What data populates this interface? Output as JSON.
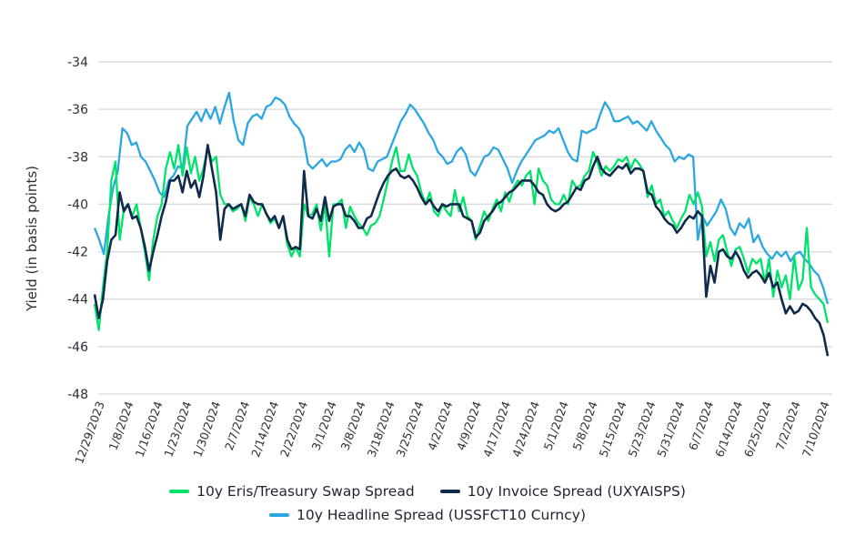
{
  "chart_data": {
    "type": "line",
    "title": "",
    "xlabel": "",
    "ylabel": "Yield (in basis points)",
    "ylim": [
      -48,
      -34
    ],
    "yticks": [
      -34,
      -36,
      -38,
      -40,
      -42,
      -44,
      -46,
      -48
    ],
    "grid": true,
    "legend_position": "bottom",
    "x_tick_labels": [
      "12/29/2023",
      "1/8/2024",
      "1/16/2024",
      "1/23/2024",
      "1/30/2024",
      "2/7/2024",
      "2/14/2024",
      "2/22/2024",
      "3/1/2024",
      "3/8/2024",
      "3/18/2024",
      "3/25/2024",
      "4/2/2024",
      "4/9/2024",
      "4/17/2024",
      "4/24/2024",
      "5/1/2024",
      "5/8/2024",
      "5/15/2024",
      "5/23/2024",
      "5/31/2024",
      "6/7/2024",
      "6/14/2024",
      "6/25/2024",
      "7/2/2024",
      "7/10/2024"
    ],
    "series": [
      {
        "name": "10y Eris/Treasury Swap Spread",
        "color": "#00e36b",
        "values": [
          -44.2,
          -45.3,
          -43.5,
          -42.0,
          -39.0,
          -38.2,
          -41.5,
          -40.2,
          -40.0,
          -40.5,
          -40.0,
          -41.0,
          -42.0,
          -43.2,
          -41.5,
          -40.5,
          -40.0,
          -38.5,
          -37.8,
          -38.5,
          -37.5,
          -38.8,
          -37.6,
          -38.7,
          -38.0,
          -39.0,
          -38.5,
          -37.6,
          -38.2,
          -38.0,
          -39.6,
          -40.0,
          -40.0,
          -40.3,
          -40.2,
          -40.0,
          -40.7,
          -39.7,
          -40.0,
          -40.5,
          -40.0,
          -40.4,
          -40.8,
          -40.6,
          -41.0,
          -40.5,
          -41.7,
          -42.2,
          -41.8,
          -42.2,
          -40.0,
          -40.5,
          -40.4,
          -40.0,
          -41.1,
          -40.0,
          -42.2,
          -40.0,
          -40.0,
          -39.8,
          -41.0,
          -40.1,
          -40.5,
          -40.8,
          -41.0,
          -41.3,
          -40.9,
          -40.8,
          -40.5,
          -39.8,
          -39.0,
          -38.2,
          -37.6,
          -38.6,
          -38.6,
          -37.9,
          -38.5,
          -38.8,
          -39.5,
          -40.0,
          -39.5,
          -40.3,
          -40.5,
          -40.0,
          -40.3,
          -40.5,
          -39.4,
          -40.3,
          -39.7,
          -40.5,
          -40.7,
          -41.5,
          -40.9,
          -40.3,
          -40.7,
          -40.2,
          -39.8,
          -40.3,
          -39.5,
          -39.9,
          -39.3,
          -39.0,
          -39.2,
          -38.8,
          -38.6,
          -40.0,
          -38.5,
          -39.0,
          -39.2,
          -39.8,
          -40.0,
          -40.0,
          -39.6,
          -40.0,
          -39.0,
          -39.3,
          -39.2,
          -38.8,
          -38.6,
          -37.8,
          -38.2,
          -38.8,
          -38.4,
          -38.6,
          -38.4,
          -38.1,
          -38.2,
          -38.0,
          -38.5,
          -38.1,
          -38.3,
          -38.6,
          -39.7,
          -39.2,
          -40.0,
          -39.8,
          -40.5,
          -40.3,
          -40.7,
          -41.0,
          -40.6,
          -40.3,
          -39.6,
          -40.0,
          -39.5,
          -40.1,
          -42.2,
          -41.6,
          -42.4,
          -41.5,
          -41.3,
          -42.0,
          -42.6,
          -41.9,
          -41.8,
          -42.3,
          -42.9,
          -42.3,
          -42.5,
          -42.3,
          -43.3,
          -42.3,
          -43.9,
          -42.8,
          -43.5,
          -43.0,
          -44.0,
          -42.2,
          -43.6,
          -43.2,
          -41.0,
          -43.5,
          -43.8,
          -44.0,
          -44.2,
          -45.0
        ]
      },
      {
        "name": "10y Invoice Spread (UXYAISPS)",
        "color": "#0f2a4a",
        "values": [
          -43.8,
          -44.8,
          -44.0,
          -42.4,
          -41.5,
          -41.3,
          -39.5,
          -40.3,
          -40.0,
          -40.6,
          -40.5,
          -41.0,
          -41.8,
          -42.8,
          -42.0,
          -41.3,
          -40.5,
          -39.9,
          -39.0,
          -39.0,
          -38.8,
          -39.5,
          -38.6,
          -39.3,
          -39.0,
          -39.7,
          -38.8,
          -37.5,
          -38.5,
          -39.5,
          -41.5,
          -40.2,
          -40.0,
          -40.2,
          -40.1,
          -40.0,
          -40.5,
          -39.6,
          -39.9,
          -40.0,
          -40.0,
          -40.4,
          -40.7,
          -40.5,
          -41.0,
          -40.5,
          -41.5,
          -41.9,
          -41.8,
          -41.9,
          -38.6,
          -40.5,
          -40.6,
          -40.2,
          -40.7,
          -39.7,
          -40.7,
          -40.1,
          -40.0,
          -40.0,
          -40.5,
          -40.5,
          -40.7,
          -41.0,
          -41.0,
          -40.6,
          -40.5,
          -40.0,
          -39.5,
          -39.1,
          -38.8,
          -38.6,
          -38.5,
          -38.8,
          -38.9,
          -38.8,
          -39.0,
          -39.3,
          -39.7,
          -40.0,
          -39.8,
          -40.1,
          -40.3,
          -40.0,
          -40.1,
          -40.0,
          -40.0,
          -40.0,
          -40.5,
          -40.6,
          -40.7,
          -41.4,
          -41.2,
          -40.7,
          -40.5,
          -40.3,
          -40.0,
          -39.9,
          -39.7,
          -39.5,
          -39.4,
          -39.2,
          -39.0,
          -39.0,
          -39.0,
          -39.2,
          -39.5,
          -39.6,
          -40.0,
          -40.2,
          -40.3,
          -40.2,
          -40.0,
          -39.9,
          -39.6,
          -39.3,
          -39.4,
          -39.0,
          -38.9,
          -38.4,
          -38.0,
          -38.5,
          -38.7,
          -38.8,
          -38.6,
          -38.4,
          -38.5,
          -38.3,
          -38.7,
          -38.5,
          -38.5,
          -38.6,
          -39.5,
          -39.6,
          -40.1,
          -40.3,
          -40.6,
          -40.8,
          -40.9,
          -41.2,
          -41.0,
          -40.7,
          -40.5,
          -40.6,
          -40.3,
          -40.5,
          -43.9,
          -42.6,
          -43.3,
          -42.0,
          -41.9,
          -42.2,
          -42.3,
          -42.0,
          -42.3,
          -42.8,
          -43.1,
          -42.9,
          -42.8,
          -43.0,
          -43.3,
          -42.9,
          -43.5,
          -43.3,
          -44.0,
          -44.6,
          -44.3,
          -44.6,
          -44.5,
          -44.2,
          -44.3,
          -44.5,
          -44.8,
          -45.0,
          -45.5,
          -46.4
        ]
      },
      {
        "name": "10y Headline Spread (USSFCT10 Curncy)",
        "color": "#2aa7e0",
        "values": [
          -41.0,
          -41.5,
          -42.1,
          -40.5,
          -39.3,
          -38.6,
          -36.8,
          -37.0,
          -37.5,
          -37.4,
          -38.0,
          -38.2,
          -38.6,
          -39.0,
          -39.5,
          -39.7,
          -39.0,
          -38.8,
          -38.4,
          -38.5,
          -36.7,
          -36.4,
          -36.1,
          -36.5,
          -36.0,
          -36.4,
          -35.9,
          -36.6,
          -35.9,
          -35.3,
          -36.5,
          -37.3,
          -37.5,
          -36.6,
          -36.3,
          -36.2,
          -36.4,
          -35.9,
          -35.8,
          -35.5,
          -35.6,
          -35.8,
          -36.3,
          -36.6,
          -36.8,
          -37.2,
          -38.3,
          -38.5,
          -38.3,
          -38.1,
          -38.4,
          -38.2,
          -38.2,
          -38.1,
          -37.7,
          -37.5,
          -37.8,
          -37.4,
          -37.7,
          -38.5,
          -38.6,
          -38.2,
          -38.1,
          -38.0,
          -37.5,
          -37.0,
          -36.5,
          -36.2,
          -35.8,
          -36.0,
          -36.3,
          -36.6,
          -37.0,
          -37.3,
          -37.8,
          -38.0,
          -38.3,
          -38.2,
          -37.8,
          -37.6,
          -37.9,
          -38.6,
          -38.8,
          -38.4,
          -38.0,
          -37.9,
          -37.6,
          -37.7,
          -38.1,
          -38.5,
          -39.1,
          -38.6,
          -38.2,
          -37.9,
          -37.6,
          -37.3,
          -37.2,
          -37.1,
          -36.9,
          -37.0,
          -36.8,
          -37.3,
          -37.8,
          -38.1,
          -38.2,
          -36.9,
          -37.0,
          -36.9,
          -36.8,
          -36.2,
          -35.7,
          -36.0,
          -36.5,
          -36.5,
          -36.4,
          -36.3,
          -36.6,
          -36.5,
          -36.7,
          -36.9,
          -36.5,
          -36.9,
          -37.2,
          -37.5,
          -37.7,
          -38.2,
          -38.0,
          -38.1,
          -37.9,
          -38.0,
          -41.5,
          -40.5,
          -40.9,
          -40.6,
          -40.3,
          -39.8,
          -40.2,
          -41.0,
          -41.3,
          -40.8,
          -41.0,
          -40.6,
          -41.6,
          -41.3,
          -41.8,
          -42.1,
          -42.3,
          -42.0,
          -42.2,
          -42.0,
          -42.4,
          -42.1,
          -42.0,
          -42.3,
          -42.5,
          -42.8,
          -43.0,
          -43.5,
          -44.2
        ]
      }
    ]
  },
  "legend": {
    "items": [
      {
        "label": "10y Eris/Treasury Swap Spread",
        "color": "#00e36b"
      },
      {
        "label": "10y Invoice Spread (UXYAISPS)",
        "color": "#0f2a4a"
      },
      {
        "label": "10y Headline Spread (USSFCT10 Curncy)",
        "color": "#2aa7e0"
      }
    ]
  }
}
